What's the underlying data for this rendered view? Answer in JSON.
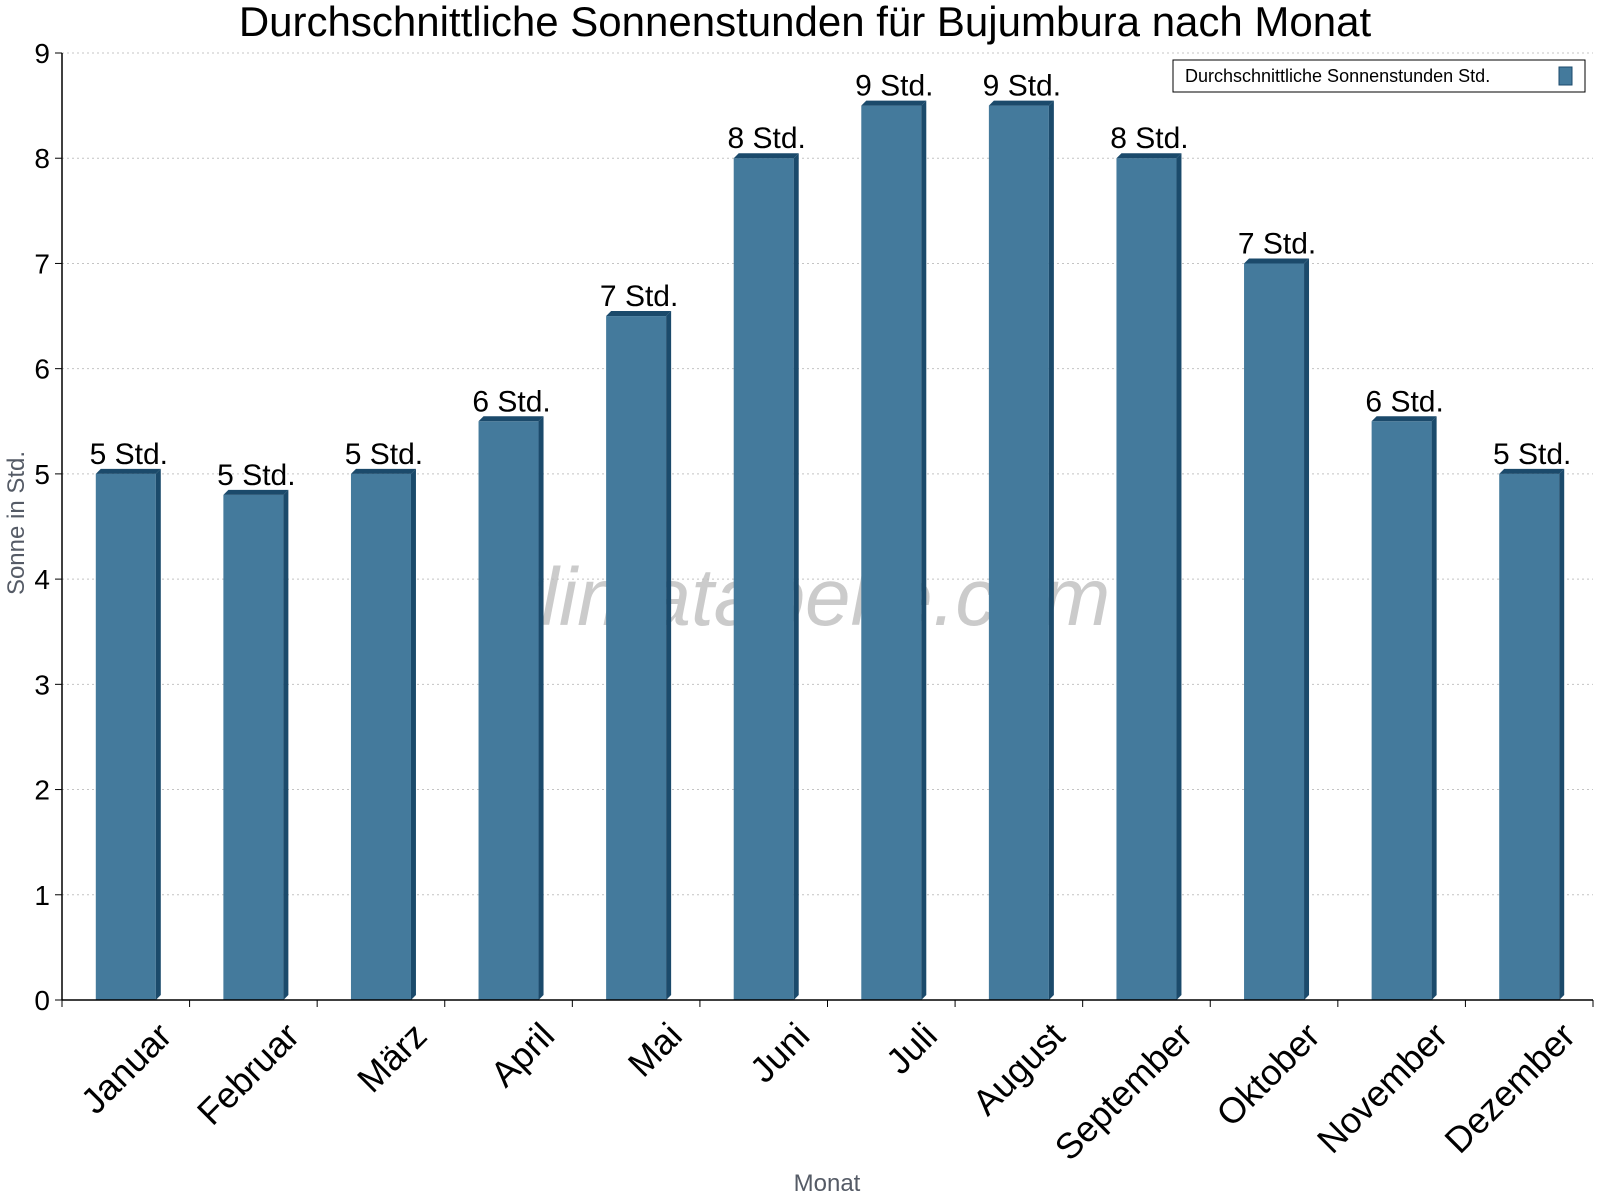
{
  "chart_data": {
    "type": "bar",
    "title": "Durchschnittliche Sonnenstunden für Bujumbura nach Monat",
    "xlabel": "Monat",
    "ylabel": "Sonne in Std.",
    "categories": [
      "Januar",
      "Februar",
      "März",
      "April",
      "Mai",
      "Juni",
      "Juli",
      "August",
      "September",
      "Oktober",
      "November",
      "Dezember"
    ],
    "series": [
      {
        "name": "Durchschnittliche Sonnenstunden Std.",
        "values": [
          5.0,
          4.8,
          5.0,
          5.5,
          6.5,
          8.0,
          8.5,
          8.5,
          8.0,
          7.0,
          5.5,
          5.0
        ],
        "labels": [
          "5 Std.",
          "5 Std.",
          "5 Std.",
          "6 Std.",
          "7 Std.",
          "8 Std.",
          "9 Std.",
          "9 Std.",
          "8 Std.",
          "7 Std.",
          "6 Std.",
          "5 Std."
        ],
        "color": "#447a9c",
        "side_color": "#1b4a6b"
      }
    ],
    "ylim": [
      0,
      9
    ],
    "yticks": [
      "0",
      "1",
      "2",
      "3",
      "4",
      "5",
      "6",
      "7",
      "8",
      "9"
    ],
    "grid": true,
    "legend_position": "top-right",
    "watermark": "klimatabelle.com"
  }
}
